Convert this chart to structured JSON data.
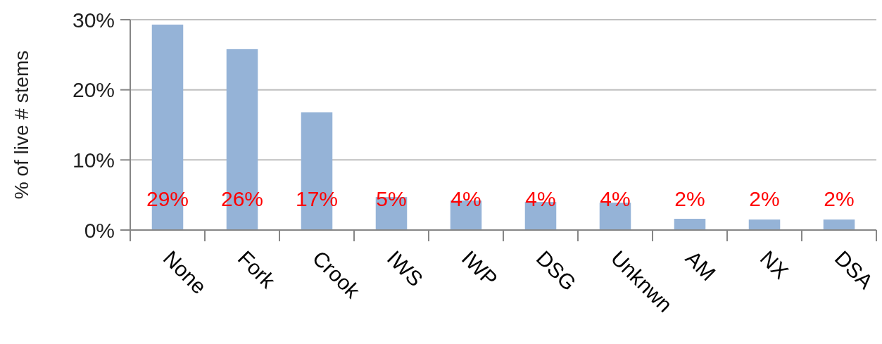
{
  "chart_data": {
    "type": "bar",
    "ylabel": "% of live # stems",
    "categories": [
      "None",
      "Fork",
      "Crook",
      "IWS",
      "IWP",
      "DSG",
      "Unknwn",
      "AM",
      "NX",
      "DSA"
    ],
    "values": [
      29.3,
      25.8,
      16.8,
      4.7,
      4.2,
      4.0,
      3.9,
      1.6,
      1.5,
      1.5
    ],
    "value_labels": [
      "29%",
      "26%",
      "17%",
      "5%",
      "4%",
      "4%",
      "4%",
      "2%",
      "2%",
      "2%"
    ],
    "color": "#95b3d7",
    "ylim": [
      0,
      30
    ],
    "yticks": [
      {
        "value": 0,
        "label": "0%"
      },
      {
        "value": 10,
        "label": "10%"
      },
      {
        "value": 20,
        "label": "20%"
      },
      {
        "value": 30,
        "label": "30%"
      }
    ],
    "grid": "y"
  }
}
